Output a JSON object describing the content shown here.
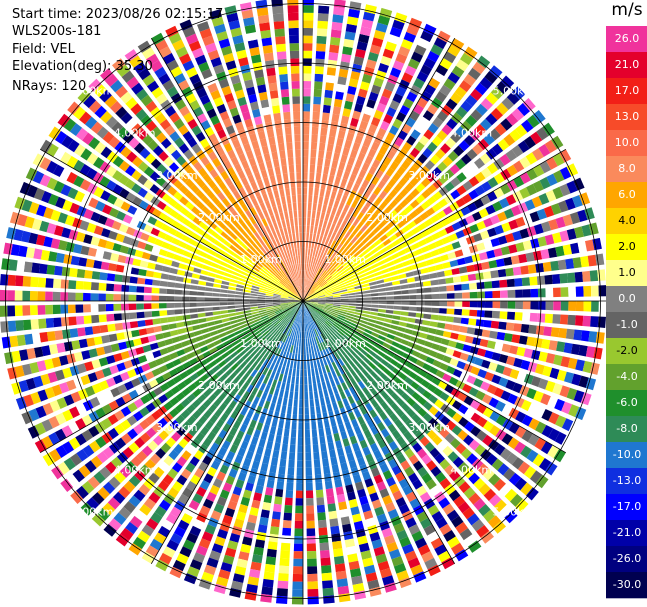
{
  "header": {
    "start_time": "Start time: 2023/08/26 02:15:17",
    "instrument": "WLS200s-181",
    "field": "Field: VEL",
    "elevation": "Elevation(deg): 35.30",
    "nrays": "NRays: 120"
  },
  "colorbar": {
    "unit": "m/s",
    "bins": [
      {
        "label": "26.0",
        "color": "#f0339c"
      },
      {
        "label": "21.0",
        "color": "#e4002c"
      },
      {
        "label": "17.0",
        "color": "#f21f17"
      },
      {
        "label": "13.0",
        "color": "#f74b29"
      },
      {
        "label": "10.0",
        "color": "#fa6a49"
      },
      {
        "label": "8.0",
        "color": "#fa8a5c"
      },
      {
        "label": "6.0",
        "color": "#ffa600"
      },
      {
        "label": "4.0",
        "color": "#ffd200"
      },
      {
        "label": "2.0",
        "color": "#ffff00"
      },
      {
        "label": "1.0",
        "color": "#ffff8c"
      },
      {
        "label": "0.0",
        "color": "#808080"
      },
      {
        "label": "-1.0",
        "color": "#646464"
      },
      {
        "label": "-2.0",
        "color": "#99c82f"
      },
      {
        "label": "-4.0",
        "color": "#62a12d"
      },
      {
        "label": "-6.0",
        "color": "#1f8f2c"
      },
      {
        "label": "-8.0",
        "color": "#2e8b57"
      },
      {
        "label": "-10.0",
        "color": "#1f77d0"
      },
      {
        "label": "-13.0",
        "color": "#0f2fe0"
      },
      {
        "label": "-17.0",
        "color": "#0000ff"
      },
      {
        "label": "-21.0",
        "color": "#0000a8"
      },
      {
        "label": "-26.0",
        "color": "#000080"
      },
      {
        "label": "-30.0",
        "color": "#000050"
      }
    ]
  },
  "ppi": {
    "range_rings": [
      {
        "km": 1,
        "label": "1.00km"
      },
      {
        "km": 2,
        "label": "2.00km"
      },
      {
        "km": 3,
        "label": "3.00km"
      },
      {
        "km": 4,
        "label": "4.00km"
      },
      {
        "km": 5,
        "label": "5.00km"
      }
    ],
    "max_range_km": 5.1,
    "nrays": 120
  }
}
